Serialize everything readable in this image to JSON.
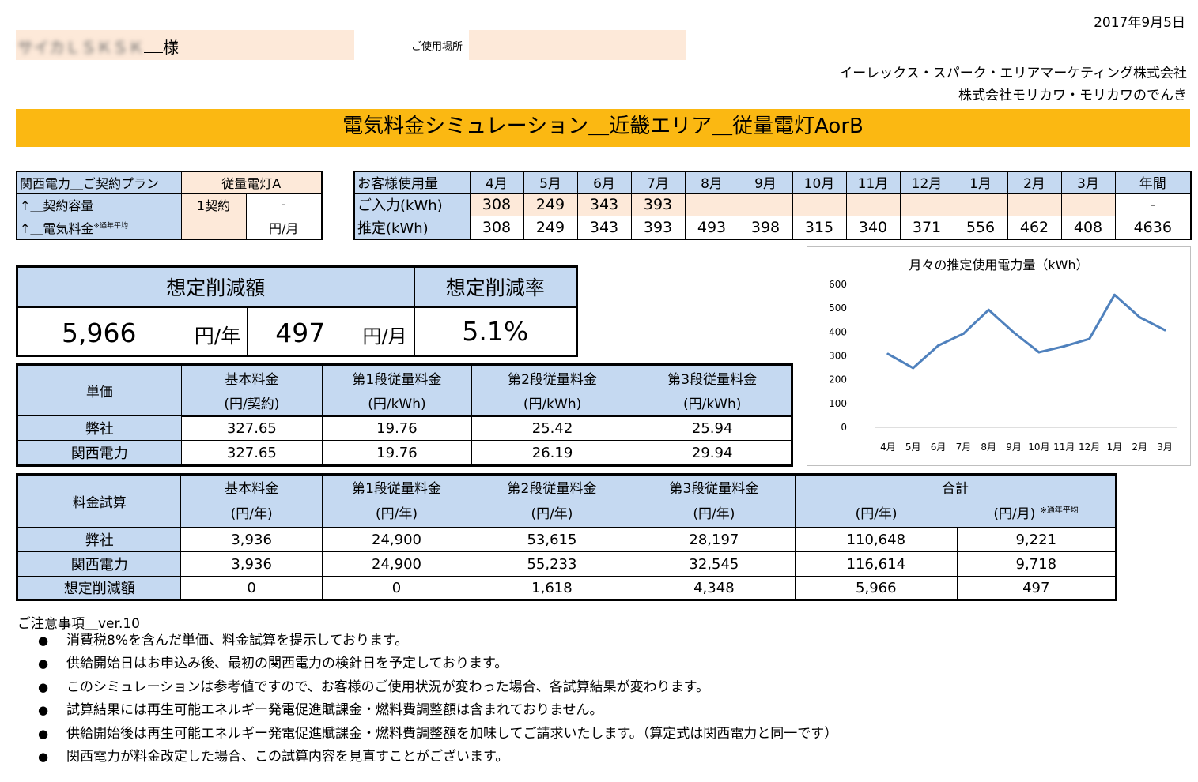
{
  "date": "2017年9月5日",
  "customer": {
    "name_blurred": "サイカＬＳＫＳＫ",
    "honorific": "様"
  },
  "location_label": "ご使用場所",
  "companies": [
    "イーレックス・スパーク・エリアマーケティング株式会社",
    "株式会社モリカワ・モリカワのでんき"
  ],
  "title": "電気料金シミュレーション＿近畿エリア＿従量電灯AorB",
  "contract": {
    "plan_label": "関西電力＿ご契約プラン",
    "plan_value": "従量電灯A",
    "capacity_label": "↑＿契約容量",
    "capacity_value": "1契約",
    "capacity_extra": "-",
    "fee_label": "↑＿電気料金",
    "fee_note": "※通年平均",
    "fee_value": "",
    "fee_unit": "円/月"
  },
  "usage": {
    "header_label": "お客様使用量",
    "months": [
      "4月",
      "5月",
      "6月",
      "7月",
      "8月",
      "9月",
      "10月",
      "11月",
      "12月",
      "1月",
      "2月",
      "3月",
      "年間"
    ],
    "input_label": "ご入力(kWh)",
    "input_values": [
      "308",
      "249",
      "343",
      "393",
      "",
      "",
      "",
      "",
      "",
      "",
      "",
      "",
      "-"
    ],
    "est_label": "推定(kWh)",
    "est_values": [
      "308",
      "249",
      "343",
      "393",
      "493",
      "398",
      "315",
      "340",
      "371",
      "556",
      "462",
      "408",
      "4636"
    ]
  },
  "savings": {
    "amount_label": "想定削減額",
    "rate_label": "想定削減率",
    "yearly": "5,966",
    "yearly_unit": "円/年",
    "monthly": "497",
    "monthly_unit": "円/月",
    "rate": "5.1%"
  },
  "unit_price": {
    "label": "単価",
    "headers": [
      {
        "name": "基本料金",
        "unit": "(円/契約)"
      },
      {
        "name": "第1段従量料金",
        "unit": "(円/kWh)"
      },
      {
        "name": "第2段従量料金",
        "unit": "(円/kWh)"
      },
      {
        "name": "第3段従量料金",
        "unit": "(円/kWh)"
      }
    ],
    "rows": [
      {
        "label": "弊社",
        "values": [
          "327.65",
          "19.76",
          "25.42",
          "25.94"
        ]
      },
      {
        "label": "関西電力",
        "values": [
          "327.65",
          "19.76",
          "26.19",
          "29.94"
        ]
      }
    ]
  },
  "trial": {
    "label": "料金試算",
    "headers": [
      {
        "name": "基本料金",
        "unit": "(円/年)"
      },
      {
        "name": "第1段従量料金",
        "unit": "(円/年)"
      },
      {
        "name": "第2段従量料金",
        "unit": "(円/年)"
      },
      {
        "name": "第3段従量料金",
        "unit": "(円/年)"
      }
    ],
    "total_label": "合計",
    "total_year_unit": "(円/年)",
    "total_month_unit": "(円/月)",
    "total_note": "※通年平均",
    "rows": [
      {
        "label": "弊社",
        "values": [
          "3,936",
          "24,900",
          "53,615",
          "28,197",
          "110,648",
          "9,221"
        ]
      },
      {
        "label": "関西電力",
        "values": [
          "3,936",
          "24,900",
          "55,233",
          "32,545",
          "116,614",
          "9,718"
        ]
      },
      {
        "label": "想定削減額",
        "values": [
          "0",
          "0",
          "1,618",
          "4,348",
          "5,966",
          "497"
        ]
      }
    ]
  },
  "notes": {
    "title": "ご注意事項＿ver.10",
    "items": [
      "消費税8%を含んだ単価、料金試算を提示しております。",
      "供給開始日はお申込み後、最初の関西電力の検針日を予定しております。",
      "このシミュレーションは参考値ですので、お客様のご使用状況が変わった場合、各試算結果が変わります。",
      "試算結果には再生可能エネルギー発電促進賦課金・燃料費調整額は含まれておりません。",
      "供給開始後は再生可能エネルギー発電促進賦課金・燃料費調整額を加味してご請求いたします。（算定式は関西電力と同一です）",
      "関西電力が料金改定した場合、この試算内容を見直すことがございます。"
    ]
  },
  "chart_data": {
    "type": "line",
    "title": "月々の推定使用電力量（kWh）",
    "categories": [
      "4月",
      "5月",
      "6月",
      "7月",
      "8月",
      "9月",
      "10月",
      "11月",
      "12月",
      "1月",
      "2月",
      "3月"
    ],
    "values": [
      308,
      249,
      343,
      393,
      493,
      398,
      315,
      340,
      371,
      556,
      462,
      408
    ],
    "ylim": [
      0,
      600
    ],
    "yticks": [
      0,
      100,
      200,
      300,
      400,
      500,
      600
    ],
    "grid": false,
    "line_color": "#4f81bd"
  }
}
